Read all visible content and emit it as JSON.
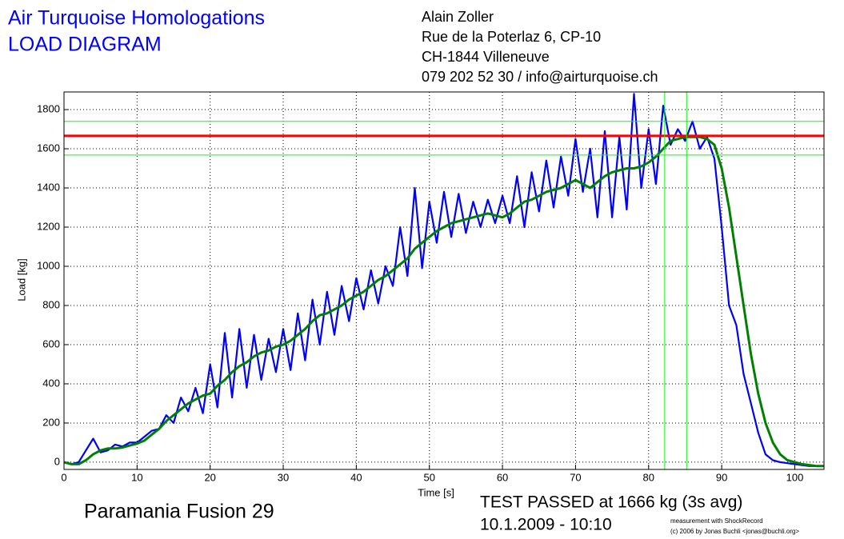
{
  "header": {
    "title": "Air Turquoise Homologations",
    "subtitle": "LOAD DIAGRAM",
    "address": [
      "Alain Zoller",
      "Rue de la Poterlaz 6, CP-10",
      "CH-1844 Villeneuve",
      "079 202 52 30 / info@airturquoise.ch"
    ]
  },
  "footer": {
    "glider": "Paramania Fusion 29",
    "result": "TEST PASSED at 1666 kg (3s avg)",
    "date": "10.1.2009 - 10:10",
    "credit1": "measurement with ShockRecord",
    "credit2": "(c) 2006 by Jonas Buchli <jonas@buchli.org>"
  },
  "chart_data": {
    "type": "line",
    "xlabel": "Time [s]",
    "ylabel": "Load [kg]",
    "xlim": [
      0,
      104
    ],
    "ylim": [
      -37,
      1890
    ],
    "xticks": [
      0,
      10,
      20,
      30,
      40,
      50,
      60,
      70,
      80,
      90,
      100
    ],
    "yticks": [
      0,
      200,
      400,
      600,
      800,
      1000,
      1200,
      1400,
      1600,
      1800
    ],
    "grid": true,
    "x": [
      0,
      1,
      2,
      3,
      4,
      5,
      6,
      7,
      8,
      9,
      10,
      11,
      12,
      13,
      14,
      15,
      16,
      17,
      18,
      19,
      20,
      21,
      22,
      23,
      24,
      25,
      26,
      27,
      28,
      29,
      30,
      31,
      32,
      33,
      34,
      35,
      36,
      37,
      38,
      39,
      40,
      41,
      42,
      43,
      44,
      45,
      46,
      47,
      48,
      49,
      50,
      51,
      52,
      53,
      54,
      55,
      56,
      57,
      58,
      59,
      60,
      61,
      62,
      63,
      64,
      65,
      66,
      67,
      68,
      69,
      70,
      71,
      72,
      73,
      74,
      75,
      76,
      77,
      78,
      79,
      80,
      81,
      82,
      83,
      84,
      85,
      86,
      87,
      88,
      89,
      90,
      91,
      92,
      93,
      94,
      95,
      96,
      97,
      98,
      99,
      100,
      101,
      102,
      103,
      104
    ],
    "series": [
      {
        "color": "#0000ff",
        "width": 2.2,
        "values": [
          0,
          -10,
          0,
          60,
          120,
          50,
          60,
          90,
          80,
          100,
          100,
          130,
          160,
          170,
          240,
          200,
          330,
          260,
          380,
          250,
          500,
          280,
          660,
          330,
          680,
          380,
          650,
          420,
          630,
          460,
          680,
          470,
          760,
          520,
          830,
          600,
          870,
          650,
          900,
          720,
          940,
          780,
          980,
          810,
          1000,
          900,
          1200,
          950,
          1400,
          990,
          1330,
          1120,
          1380,
          1150,
          1370,
          1170,
          1330,
          1200,
          1340,
          1220,
          1360,
          1220,
          1460,
          1200,
          1480,
          1280,
          1540,
          1300,
          1560,
          1360,
          1650,
          1380,
          1600,
          1250,
          1690,
          1250,
          1660,
          1290,
          1880,
          1400,
          1700,
          1420,
          1820,
          1620,
          1700,
          1640,
          1740,
          1600,
          1660,
          1550,
          1200,
          800,
          700,
          450,
          300,
          150,
          40,
          10,
          0,
          -5,
          -10,
          -15,
          -20,
          -20,
          -20
        ]
      },
      {
        "color": "#008000",
        "width": 3,
        "values": [
          0,
          -10,
          -10,
          10,
          40,
          60,
          70,
          70,
          75,
          85,
          95,
          110,
          140,
          170,
          210,
          240,
          270,
          300,
          320,
          340,
          350,
          390,
          420,
          460,
          490,
          510,
          540,
          560,
          570,
          590,
          600,
          620,
          650,
          680,
          720,
          750,
          760,
          780,
          800,
          830,
          850,
          870,
          900,
          930,
          950,
          980,
          1010,
          1040,
          1090,
          1120,
          1150,
          1180,
          1200,
          1220,
          1230,
          1240,
          1250,
          1260,
          1270,
          1260,
          1250,
          1270,
          1300,
          1330,
          1340,
          1360,
          1380,
          1390,
          1400,
          1420,
          1440,
          1420,
          1400,
          1430,
          1460,
          1480,
          1490,
          1500,
          1500,
          1510,
          1530,
          1560,
          1600,
          1640,
          1650,
          1660,
          1660,
          1660,
          1650,
          1620,
          1500,
          1300,
          1050,
          800,
          550,
          350,
          200,
          100,
          40,
          10,
          0,
          -10,
          -15,
          -20,
          -20
        ]
      }
    ],
    "reference_lines": [
      {
        "axis": "y",
        "value": 1740,
        "color": "#00ff00",
        "width": 1
      },
      {
        "axis": "y",
        "value": 1568,
        "color": "#00ff00",
        "width": 1
      },
      {
        "axis": "y",
        "value": 1666,
        "color": "#ff0000",
        "width": 3
      },
      {
        "axis": "x",
        "value": 82.2,
        "color": "#00ff00",
        "width": 1
      },
      {
        "axis": "x",
        "value": 85.2,
        "color": "#00ff00",
        "width": 1
      }
    ]
  }
}
